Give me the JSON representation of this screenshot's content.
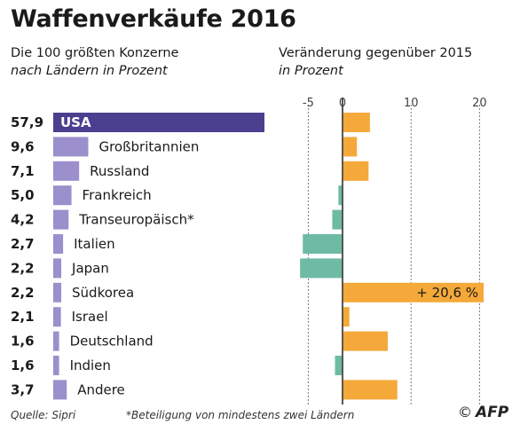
{
  "header": {
    "title": "Waffenverkäufe 2016",
    "left_subtitle": "Die 100 größten Konzerne",
    "left_note": "nach Ländern in Prozent",
    "right_subtitle": "Veränderung gegenüber 2015",
    "right_note": "in Prozent"
  },
  "chart_data": [
    {
      "type": "bar",
      "orientation": "horizontal",
      "title": "Die 100 größten Konzerne",
      "unit": "nach Ländern in Prozent",
      "categories": [
        "USA",
        "Großbritannien",
        "Russland",
        "Frankreich",
        "Transeuropäisch*",
        "Italien",
        "Japan",
        "Südkorea",
        "Israel",
        "Deutschland",
        "Indien",
        "Andere"
      ],
      "values": [
        57.9,
        9.6,
        7.1,
        5.0,
        4.2,
        2.7,
        2.2,
        2.2,
        2.1,
        1.6,
        1.6,
        3.7
      ],
      "value_labels": [
        "57,9",
        "9,6",
        "7,1",
        "5,0",
        "4,2",
        "2,7",
        "2,2",
        "2,2",
        "2,1",
        "1,6",
        "1,6",
        "3,7"
      ],
      "colors": {
        "highlight": "#4b3f8f",
        "default": "#9b8fcc"
      }
    },
    {
      "type": "bar",
      "orientation": "horizontal",
      "title": "Veränderung gegenüber 2015",
      "unit": "in Prozent",
      "categories": [
        "USA",
        "Großbritannien",
        "Russland",
        "Frankreich",
        "Transeuropäisch*",
        "Italien",
        "Japan",
        "Südkorea",
        "Israel",
        "Deutschland",
        "Indien",
        "Andere"
      ],
      "values": [
        4.0,
        2.1,
        3.8,
        -0.6,
        -1.5,
        -5.8,
        -6.2,
        20.6,
        1.0,
        6.6,
        -1.1,
        8.0
      ],
      "annotation": "+ 20,6 %",
      "xlim": [
        -8,
        24
      ],
      "xticks": [
        -5,
        0,
        10,
        20
      ],
      "xtick_labels": [
        "-5",
        "0",
        "10",
        "20"
      ],
      "grid": true,
      "colors": {
        "positive": "#f4a93a",
        "negative": "#6fbaa3"
      }
    }
  ],
  "footer": {
    "source": "Quelle: Sipri",
    "footnote": "*Beteiligung von mindestens zwei Ländern",
    "logo": "AFP",
    "copyright": "©"
  }
}
